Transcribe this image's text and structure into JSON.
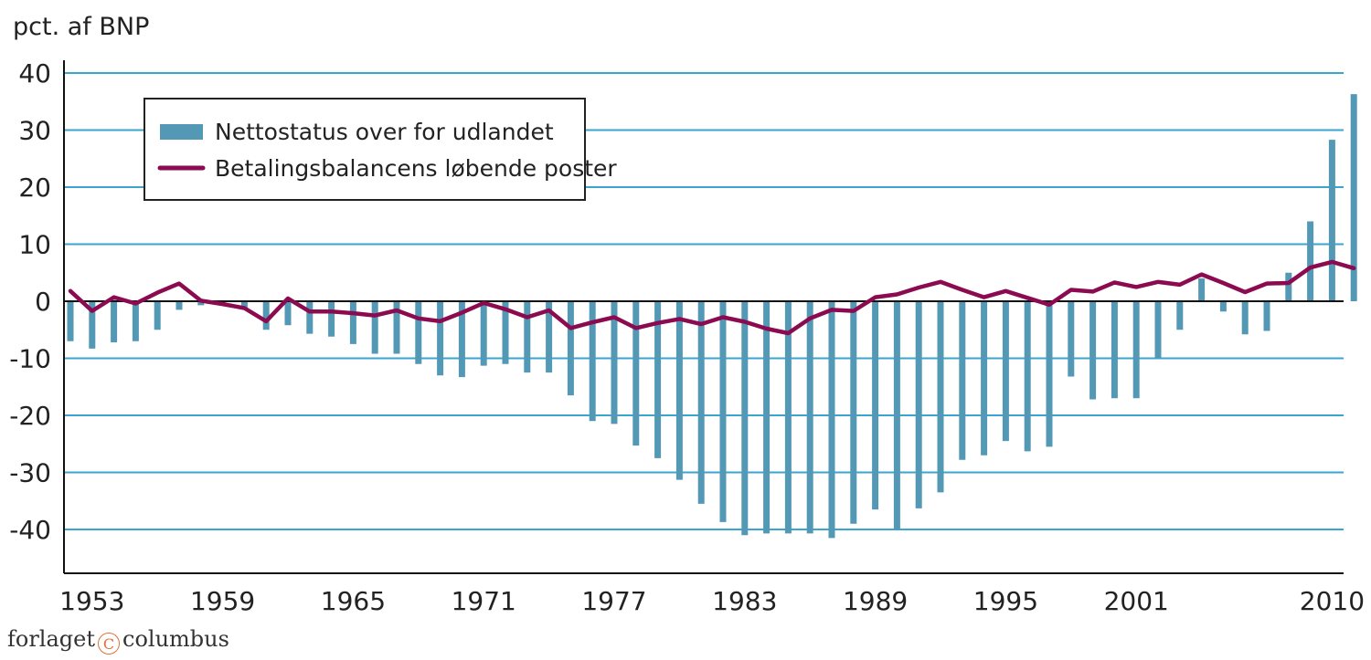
{
  "chart_data": {
    "type": "bar+line",
    "unit_label": "pct. af BNP",
    "ylim": [
      -40,
      40
    ],
    "yticks": [
      40,
      30,
      20,
      10,
      0,
      -10,
      -20,
      -30,
      -40
    ],
    "xtick_labels": [
      "1953",
      "1959",
      "1965",
      "1971",
      "1977",
      "1983",
      "1989",
      "1995",
      "2001",
      "2010"
    ],
    "xtick_years": [
      1953,
      1959,
      1965,
      1971,
      1977,
      1983,
      1989,
      1995,
      2001,
      2010
    ],
    "grid": true,
    "legend_position": "top-left",
    "years": [
      1952,
      1953,
      1954,
      1955,
      1956,
      1957,
      1958,
      1959,
      1960,
      1961,
      1962,
      1963,
      1964,
      1965,
      1966,
      1967,
      1968,
      1969,
      1970,
      1971,
      1972,
      1973,
      1974,
      1975,
      1976,
      1977,
      1978,
      1979,
      1980,
      1981,
      1982,
      1983,
      1984,
      1985,
      1986,
      1987,
      1988,
      1989,
      1990,
      1991,
      1992,
      1993,
      1994,
      1995,
      1996,
      1997,
      1998,
      1999,
      2000,
      2001,
      2002,
      2003,
      2004,
      2005,
      2006,
      2007,
      2008,
      2009,
      2010,
      2011
    ],
    "series": [
      {
        "name": "Nettostatus over for udlandet",
        "kind": "bar",
        "color": "#5399b6",
        "values": [
          -7,
          -8.3,
          -7.2,
          -7,
          -5,
          -1.5,
          -0.7,
          -0.7,
          -1.2,
          -5,
          -4.2,
          -5.7,
          -6.2,
          -7.5,
          -9.2,
          -9.2,
          -11,
          -13,
          -13.3,
          -11.3,
          -11,
          -12.5,
          -12.5,
          -16.5,
          -21,
          -21.5,
          -25.3,
          -27.5,
          -31.3,
          -35.5,
          -38.7,
          -41,
          -40.7,
          -40.7,
          -40.7,
          -41.5,
          -39,
          -36.5,
          -40,
          -36.3,
          -33.5,
          -27.8,
          -27,
          -24.5,
          -26.3,
          -25.5,
          -13.2,
          -17.2,
          -17,
          -17,
          -10,
          -5,
          4,
          -1.8,
          -5.8,
          -5.2,
          5,
          14,
          28.3,
          36.3
        ]
      },
      {
        "name": "Betalingsbalancens løbende poster",
        "kind": "line",
        "color": "#8b0a50",
        "values": [
          1.8,
          -1.7,
          0.7,
          -0.4,
          1.5,
          3.1,
          0.1,
          -0.5,
          -1.2,
          -3.5,
          0.5,
          -1.8,
          -1.8,
          -2.1,
          -2.5,
          -1.6,
          -3,
          -3.5,
          -2,
          -0.3,
          -1.4,
          -2.8,
          -1.6,
          -4.7,
          -3.7,
          -2.8,
          -4.7,
          -3.8,
          -3.1,
          -4,
          -2.8,
          -3.6,
          -4.8,
          -5.6,
          -3,
          -1.5,
          -1.7,
          0.7,
          1.2,
          2.4,
          3.4,
          2,
          0.7,
          1.8,
          0.6,
          -0.6,
          2,
          1.7,
          3.3,
          2.5,
          3.4,
          2.9,
          4.7,
          3.2,
          1.6,
          3.1,
          3.2,
          5.9,
          6.9,
          5.8
        ]
      }
    ]
  },
  "credit": {
    "pre": "forlaget",
    "symbol": "C",
    "post": "columbus"
  }
}
